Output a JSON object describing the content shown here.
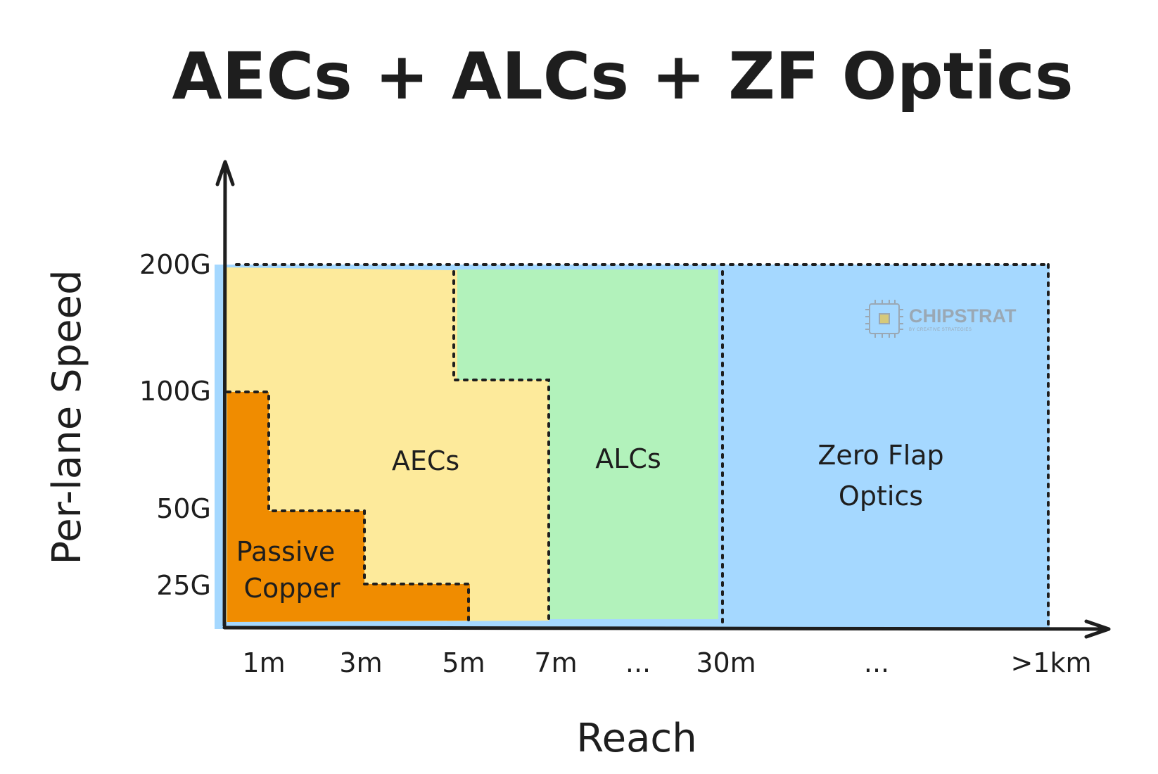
{
  "title": "AECs + ALCs + ZF Optics",
  "axes": {
    "x_title": "Reach",
    "y_title": "Per-lane Speed",
    "x_ticks": [
      "1m",
      "3m",
      "5m",
      "7m",
      "...",
      "30m",
      "...",
      ">1km"
    ],
    "y_ticks": [
      "200G",
      "100G",
      "50G",
      "25G"
    ]
  },
  "regions": {
    "passive_copper": {
      "label_line1": "Passive",
      "label_line2": "Copper",
      "color": "#f08c00"
    },
    "aecs": {
      "label": "AECs",
      "color": "#fdea9b"
    },
    "alcs": {
      "label": "ALCs",
      "color": "#b2f2bb"
    },
    "zf_optics": {
      "label_line1": "Zero Flap",
      "label_line2": "Optics",
      "color": "#a5d8ff"
    }
  },
  "watermark": {
    "brand": "CHIPSTRAT",
    "tagline": "BY CREATIVE STRATEGIES"
  },
  "colors": {
    "ink": "#1e1e1e",
    "background": "#ffffff"
  }
}
